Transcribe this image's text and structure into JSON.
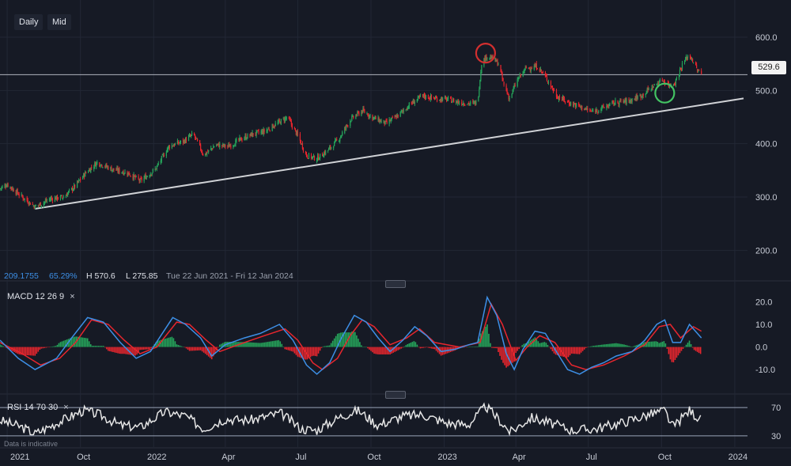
{
  "toolbar": {
    "daily_label": "Daily",
    "mid_label": "Mid"
  },
  "info_bar": {
    "value1": "209.1755",
    "value2": "65.29%",
    "high": "H 570.6",
    "low": "L 275.85",
    "range": "Tue 22 Jun 2021 - Fri 12 Jan 2024"
  },
  "current_price_label": "529.6",
  "indicators": {
    "macd": {
      "name": "MACD",
      "params": "12 26 9",
      "close_label": "×"
    },
    "rsi": {
      "name": "RSI",
      "params": "14 70 30",
      "close_label": "×"
    }
  },
  "disclaimer": "Data is indicative",
  "colors": {
    "background": "#161a25",
    "up": "#26a65b",
    "down": "#e8262e",
    "macd_line": "#3d8fe6",
    "signal_line": "#e8262e",
    "trend_line": "#d0d2d6",
    "rsi_line": "#e6e6e6",
    "annotation_red": "#d32f2f",
    "annotation_green": "#43c463"
  },
  "chart_data": [
    {
      "type": "candlestick",
      "title": "",
      "x_tick_labels": [
        "2021",
        "Oct",
        "2022",
        "Apr",
        "Jul",
        "Oct",
        "2023",
        "Apr",
        "Jul",
        "Oct",
        "2024"
      ],
      "x_range": [
        "2021-06-22",
        "2024-01-12"
      ],
      "y_ticks": [
        200.0,
        300.0,
        400.0,
        500.0,
        600.0
      ],
      "y_tick_labels": [
        "200.0",
        "300.0",
        "400.0",
        "500.0",
        "600.0"
      ],
      "ylim": [
        165,
        640
      ],
      "high": 570.6,
      "low": 275.85,
      "current_price": 529.6,
      "close_points": [
        [
          "2021-06-22",
          316
        ],
        [
          "2021-07-01",
          324
        ],
        [
          "2021-07-20",
          300
        ],
        [
          "2021-08-05",
          282
        ],
        [
          "2021-08-25",
          297
        ],
        [
          "2021-09-10",
          300
        ],
        [
          "2021-09-24",
          320
        ],
        [
          "2021-10-08",
          346
        ],
        [
          "2021-10-22",
          365
        ],
        [
          "2021-11-10",
          352
        ],
        [
          "2021-11-30",
          345
        ],
        [
          "2021-12-15",
          330
        ],
        [
          "2022-01-03",
          352
        ],
        [
          "2022-01-20",
          395
        ],
        [
          "2022-02-08",
          405
        ],
        [
          "2022-02-20",
          418
        ],
        [
          "2022-03-05",
          378
        ],
        [
          "2022-03-20",
          398
        ],
        [
          "2022-04-05",
          395
        ],
        [
          "2022-04-20",
          408
        ],
        [
          "2022-05-05",
          418
        ],
        [
          "2022-05-20",
          423
        ],
        [
          "2022-06-05",
          438
        ],
        [
          "2022-06-18",
          450
        ],
        [
          "2022-07-01",
          415
        ],
        [
          "2022-07-12",
          378
        ],
        [
          "2022-07-25",
          372
        ],
        [
          "2022-08-08",
          388
        ],
        [
          "2022-08-22",
          410
        ],
        [
          "2022-09-05",
          445
        ],
        [
          "2022-09-20",
          462
        ],
        [
          "2022-10-05",
          448
        ],
        [
          "2022-10-20",
          438
        ],
        [
          "2022-11-03",
          452
        ],
        [
          "2022-11-20",
          475
        ],
        [
          "2022-12-05",
          490
        ],
        [
          "2022-12-20",
          485
        ],
        [
          "2023-01-05",
          483
        ],
        [
          "2023-01-20",
          478
        ],
        [
          "2023-02-05",
          475
        ],
        [
          "2023-02-12",
          478
        ],
        [
          "2023-02-17",
          552
        ],
        [
          "2023-02-24",
          565
        ],
        [
          "2023-03-03",
          560
        ],
        [
          "2023-03-10",
          550
        ],
        [
          "2023-03-17",
          510
        ],
        [
          "2023-03-24",
          485
        ],
        [
          "2023-04-03",
          520
        ],
        [
          "2023-04-14",
          542
        ],
        [
          "2023-04-28",
          545
        ],
        [
          "2023-05-10",
          522
        ],
        [
          "2023-05-22",
          490
        ],
        [
          "2023-06-05",
          478
        ],
        [
          "2023-06-20",
          470
        ],
        [
          "2023-07-05",
          460
        ],
        [
          "2023-07-20",
          468
        ],
        [
          "2023-08-05",
          478
        ],
        [
          "2023-08-20",
          480
        ],
        [
          "2023-09-05",
          490
        ],
        [
          "2023-09-18",
          505
        ],
        [
          "2023-10-02",
          520
        ],
        [
          "2023-10-10",
          510
        ],
        [
          "2023-10-18",
          515
        ],
        [
          "2023-10-26",
          545
        ],
        [
          "2023-11-03",
          565
        ],
        [
          "2023-11-08",
          560
        ],
        [
          "2023-11-14",
          540
        ],
        [
          "2023-11-20",
          529.6
        ]
      ],
      "trend_line": {
        "from": [
          "2021-08-05",
          278
        ],
        "to": [
          "2024-01-12",
          485
        ]
      },
      "horizontal_line": 529.6,
      "annotations": [
        {
          "shape": "circle",
          "color": "red",
          "at": [
            "2023-02-22",
            570
          ]
        },
        {
          "shape": "circle",
          "color": "green",
          "at": [
            "2023-10-05",
            495
          ]
        }
      ]
    },
    {
      "type": "line",
      "title": "MACD 12 26 9",
      "y_ticks": [
        -10.0,
        0.0,
        10.0,
        20.0
      ],
      "y_tick_labels": [
        "-10.0",
        "0.0",
        "10.0",
        "20.0"
      ],
      "ylim": [
        -18,
        24
      ],
      "series": [
        {
          "name": "MACD",
          "points": [
            [
              "2021-06-22",
              3
            ],
            [
              "2021-07-15",
              -5
            ],
            [
              "2021-08-05",
              -10
            ],
            [
              "2021-09-01",
              -5
            ],
            [
              "2021-09-20",
              4
            ],
            [
              "2021-10-10",
              13
            ],
            [
              "2021-10-30",
              11
            ],
            [
              "2021-11-20",
              2
            ],
            [
              "2021-12-10",
              -5
            ],
            [
              "2021-12-28",
              -2
            ],
            [
              "2022-01-10",
              5
            ],
            [
              "2022-01-25",
              13
            ],
            [
              "2022-02-10",
              10
            ],
            [
              "2022-03-01",
              4
            ],
            [
              "2022-03-15",
              -4
            ],
            [
              "2022-04-01",
              1
            ],
            [
              "2022-04-25",
              4
            ],
            [
              "2022-05-15",
              6
            ],
            [
              "2022-06-08",
              10
            ],
            [
              "2022-06-25",
              3
            ],
            [
              "2022-07-12",
              -8
            ],
            [
              "2022-07-25",
              -12
            ],
            [
              "2022-08-10",
              -7
            ],
            [
              "2022-08-25",
              4
            ],
            [
              "2022-09-10",
              14
            ],
            [
              "2022-09-25",
              11
            ],
            [
              "2022-10-10",
              4
            ],
            [
              "2022-10-25",
              -2
            ],
            [
              "2022-11-10",
              3
            ],
            [
              "2022-11-25",
              9
            ],
            [
              "2022-12-10",
              5
            ],
            [
              "2022-12-28",
              -2
            ],
            [
              "2023-01-15",
              -1
            ],
            [
              "2023-02-01",
              1
            ],
            [
              "2023-02-12",
              2
            ],
            [
              "2023-02-24",
              22
            ],
            [
              "2023-03-08",
              14
            ],
            [
              "2023-03-20",
              -3
            ],
            [
              "2023-03-30",
              -10
            ],
            [
              "2023-04-10",
              -1
            ],
            [
              "2023-04-25",
              7
            ],
            [
              "2023-05-08",
              6
            ],
            [
              "2023-05-20",
              -1
            ],
            [
              "2023-06-05",
              -10
            ],
            [
              "2023-06-20",
              -12
            ],
            [
              "2023-07-05",
              -9
            ],
            [
              "2023-07-20",
              -7
            ],
            [
              "2023-08-05",
              -4
            ],
            [
              "2023-08-25",
              -2
            ],
            [
              "2023-09-10",
              3
            ],
            [
              "2023-09-25",
              10
            ],
            [
              "2023-10-05",
              12
            ],
            [
              "2023-10-15",
              2
            ],
            [
              "2023-10-25",
              2
            ],
            [
              "2023-11-05",
              10
            ],
            [
              "2023-11-20",
              4
            ]
          ]
        },
        {
          "name": "Signal",
          "points": [
            [
              "2021-06-22",
              2
            ],
            [
              "2021-07-20",
              -3
            ],
            [
              "2021-08-12",
              -8
            ],
            [
              "2021-09-05",
              -5
            ],
            [
              "2021-09-25",
              2
            ],
            [
              "2021-10-15",
              12
            ],
            [
              "2021-11-05",
              10
            ],
            [
              "2021-11-25",
              3
            ],
            [
              "2021-12-15",
              -3
            ],
            [
              "2022-01-05",
              0
            ],
            [
              "2022-01-30",
              11
            ],
            [
              "2022-02-15",
              10
            ],
            [
              "2022-03-08",
              3
            ],
            [
              "2022-03-25",
              -2
            ],
            [
              "2022-04-25",
              2
            ],
            [
              "2022-05-20",
              5
            ],
            [
              "2022-06-15",
              8
            ],
            [
              "2022-07-01",
              3
            ],
            [
              "2022-07-20",
              -7
            ],
            [
              "2022-08-01",
              -10
            ],
            [
              "2022-08-20",
              -5
            ],
            [
              "2022-09-05",
              5
            ],
            [
              "2022-09-20",
              12
            ],
            [
              "2022-10-05",
              9
            ],
            [
              "2022-10-25",
              1
            ],
            [
              "2022-11-15",
              4
            ],
            [
              "2022-12-01",
              8
            ],
            [
              "2022-12-20",
              2
            ],
            [
              "2023-01-20",
              0
            ],
            [
              "2023-02-15",
              2
            ],
            [
              "2023-03-01",
              19
            ],
            [
              "2023-03-15",
              10
            ],
            [
              "2023-04-01",
              -6
            ],
            [
              "2023-04-15",
              0
            ],
            [
              "2023-05-01",
              5
            ],
            [
              "2023-05-20",
              2
            ],
            [
              "2023-06-10",
              -8
            ],
            [
              "2023-06-28",
              -10
            ],
            [
              "2023-07-20",
              -8
            ],
            [
              "2023-08-15",
              -4
            ],
            [
              "2023-09-10",
              1
            ],
            [
              "2023-09-28",
              9
            ],
            [
              "2023-10-12",
              10
            ],
            [
              "2023-10-25",
              4
            ],
            [
              "2023-11-10",
              9
            ],
            [
              "2023-11-20",
              7
            ]
          ]
        }
      ]
    },
    {
      "type": "line",
      "title": "RSI 14 70 30",
      "y_ticks": [
        30,
        70
      ],
      "y_tick_labels": [
        "30",
        "70"
      ],
      "ylim": [
        22,
        78
      ],
      "series": [
        {
          "name": "RSI",
          "points": [
            [
              "2021-06-22",
              52
            ],
            [
              "2021-07-20",
              42
            ],
            [
              "2021-08-05",
              33
            ],
            [
              "2021-09-01",
              48
            ],
            [
              "2021-10-05",
              66
            ],
            [
              "2021-10-25",
              60
            ],
            [
              "2021-11-20",
              45
            ],
            [
              "2021-12-15",
              42
            ],
            [
              "2022-01-15",
              64
            ],
            [
              "2022-02-10",
              58
            ],
            [
              "2022-03-05",
              40
            ],
            [
              "2022-04-01",
              54
            ],
            [
              "2022-05-01",
              52
            ],
            [
              "2022-06-10",
              62
            ],
            [
              "2022-07-05",
              40
            ],
            [
              "2022-07-25",
              38
            ],
            [
              "2022-08-25",
              58
            ],
            [
              "2022-09-15",
              66
            ],
            [
              "2022-10-10",
              45
            ],
            [
              "2022-11-10",
              58
            ],
            [
              "2022-12-05",
              60
            ],
            [
              "2023-01-05",
              48
            ],
            [
              "2023-02-01",
              46
            ],
            [
              "2023-02-22",
              72
            ],
            [
              "2023-03-10",
              54
            ],
            [
              "2023-03-25",
              35
            ],
            [
              "2023-04-20",
              56
            ],
            [
              "2023-05-20",
              46
            ],
            [
              "2023-06-10",
              38
            ],
            [
              "2023-07-10",
              40
            ],
            [
              "2023-08-10",
              48
            ],
            [
              "2023-09-15",
              60
            ],
            [
              "2023-10-05",
              66
            ],
            [
              "2023-10-15",
              42
            ],
            [
              "2023-11-05",
              66
            ],
            [
              "2023-11-20",
              52
            ]
          ]
        }
      ],
      "overbought_level": 70,
      "oversold_level": 30
    }
  ]
}
